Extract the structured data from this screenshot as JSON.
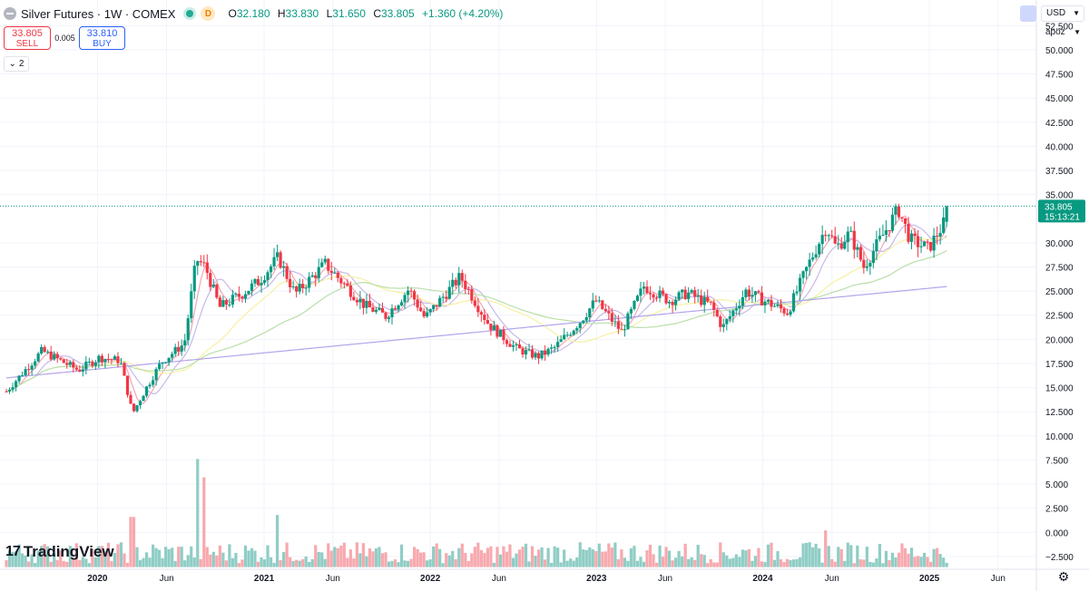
{
  "header": {
    "title": "Silver Futures · 1W · COMEX",
    "status_badge": "D",
    "ohlc": [
      {
        "key": "O",
        "value": "32.180"
      },
      {
        "key": "H",
        "value": "33.830"
      },
      {
        "key": "L",
        "value": "31.650"
      },
      {
        "key": "C",
        "value": "33.805"
      },
      {
        "key": "",
        "value": "+1.360 (+4.20%)"
      }
    ]
  },
  "trade": {
    "sell_price": "33.805",
    "sell_label": "SELL",
    "spread": "0.005",
    "buy_price": "33.810",
    "buy_label": "BUY"
  },
  "legend_toggle": {
    "count": "2",
    "chevron": "⌄"
  },
  "price_axis": {
    "currency": "USD",
    "unit": "apoz",
    "last_price": "33.805",
    "countdown": "15:13:21"
  },
  "logo": {
    "mark": "17",
    "text": "TradingView"
  },
  "colors": {
    "up": "#089981",
    "down": "#f23645",
    "vol_up": "#8fcdc5",
    "vol_down": "#f7a9ae",
    "ma_pink": "#f5a4b4",
    "ma_lavender": "#c9b8e8",
    "ma_yellow": "#f6f0a2",
    "ma_green": "#b9dfa8",
    "ma_purple": "#b4a3ea",
    "last_line": "#089981"
  },
  "chart_data": {
    "type": "candlestick",
    "x_tick_labels": [
      {
        "label": "2020",
        "date": "2020-01-01"
      },
      {
        "label": "Jun",
        "date": "2020-06-01"
      },
      {
        "label": "2021",
        "date": "2021-01-01"
      },
      {
        "label": "Jun",
        "date": "2021-06-01"
      },
      {
        "label": "2022",
        "date": "2022-01-01"
      },
      {
        "label": "Jun",
        "date": "2022-06-01"
      },
      {
        "label": "2023",
        "date": "2023-01-01"
      },
      {
        "label": "Jun",
        "date": "2023-06-01"
      },
      {
        "label": "2024",
        "date": "2024-01-01"
      },
      {
        "label": "Jun",
        "date": "2024-06-01"
      },
      {
        "label": "2025",
        "date": "2025-01-01"
      },
      {
        "label": "Jun",
        "date": "2025-06-01"
      }
    ],
    "x_range": [
      "2019-06-01",
      "2025-08-24"
    ],
    "price_ticks": [
      "52.500",
      "50.000",
      "47.500",
      "45.000",
      "42.500",
      "40.000",
      "37.500",
      "35.000",
      "30.000",
      "27.500",
      "25.000",
      "22.500",
      "20.000",
      "17.500",
      "15.000",
      "12.500",
      "10.000",
      "7.500",
      "5.000",
      "2.500",
      "0.000",
      "−2.500"
    ],
    "price_range": [
      -4.2,
      54.5
    ],
    "price_anchors": [
      [
        "2019-06-15",
        14.6
      ],
      [
        "2019-09-01",
        18.8
      ],
      [
        "2019-11-20",
        16.8
      ],
      [
        "2020-01-05",
        18.1
      ],
      [
        "2020-02-20",
        17.8
      ],
      [
        "2020-03-18",
        12.3
      ],
      [
        "2020-04-20",
        15.2
      ],
      [
        "2020-05-20",
        17.6
      ],
      [
        "2020-07-10",
        19.6
      ],
      [
        "2020-08-05",
        28.3
      ],
      [
        "2020-08-25",
        27.5
      ],
      [
        "2020-09-25",
        23.3
      ],
      [
        "2020-11-10",
        24.6
      ],
      [
        "2020-12-20",
        26.0
      ],
      [
        "2021-02-01",
        28.5
      ],
      [
        "2021-03-10",
        24.7
      ],
      [
        "2021-05-15",
        27.8
      ],
      [
        "2021-06-20",
        26.0
      ],
      [
        "2021-08-10",
        23.5
      ],
      [
        "2021-09-25",
        22.4
      ],
      [
        "2021-11-15",
        25.2
      ],
      [
        "2021-12-20",
        22.2
      ],
      [
        "2022-03-08",
        26.5
      ],
      [
        "2022-05-10",
        21.5
      ],
      [
        "2022-07-10",
        19.0
      ],
      [
        "2022-08-25",
        18.2
      ],
      [
        "2022-09-30",
        19.1
      ],
      [
        "2022-11-25",
        21.8
      ],
      [
        "2022-12-30",
        24.0
      ],
      [
        "2023-02-25",
        20.8
      ],
      [
        "2023-04-15",
        25.5
      ],
      [
        "2023-06-10",
        24.0
      ],
      [
        "2023-07-20",
        24.8
      ],
      [
        "2023-09-10",
        23.5
      ],
      [
        "2023-10-05",
        21.2
      ],
      [
        "2023-11-25",
        25.0
      ],
      [
        "2023-12-30",
        24.1
      ],
      [
        "2024-02-25",
        22.8
      ],
      [
        "2024-04-10",
        27.7
      ],
      [
        "2024-05-20",
        31.7
      ],
      [
        "2024-06-10",
        29.5
      ],
      [
        "2024-07-10",
        31.0
      ],
      [
        "2024-08-10",
        27.5
      ],
      [
        "2024-10-25",
        33.5
      ],
      [
        "2024-11-20",
        30.3
      ],
      [
        "2024-12-30",
        29.4
      ],
      [
        "2025-02-03",
        32.1
      ],
      [
        "2025-02-10",
        33.8
      ]
    ],
    "moving_averages": [
      {
        "color_key": "ma_pink",
        "period_weeks": 5
      },
      {
        "color_key": "ma_lavender",
        "period_weeks": 10
      },
      {
        "color_key": "ma_yellow",
        "period_weeks": 30
      },
      {
        "color_key": "ma_green",
        "period_weeks": 55
      },
      {
        "color_key": "ma_purple",
        "period_weeks": 200
      }
    ],
    "volume_spikes": [
      [
        "2020-03-18",
        5.2
      ],
      [
        "2020-08-10",
        11.2
      ],
      [
        "2020-08-20",
        9.3
      ],
      [
        "2021-02-01",
        5.4
      ],
      [
        "2024-05-20",
        3.8
      ],
      [
        "2024-10-25",
        1.5
      ]
    ]
  }
}
